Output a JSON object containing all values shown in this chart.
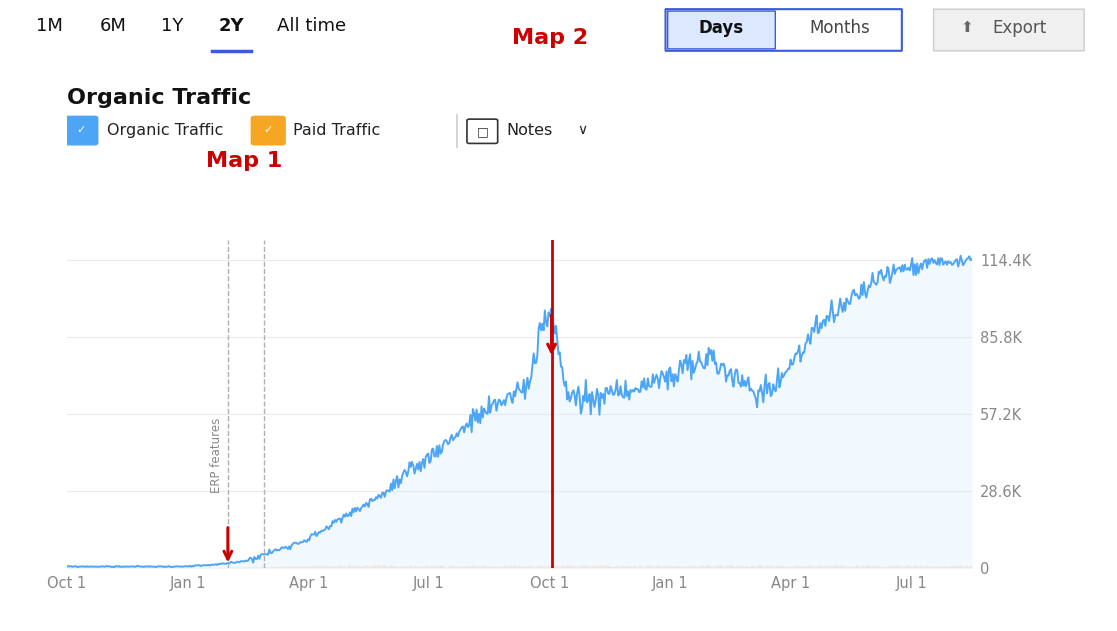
{
  "title": "Organic Traffic",
  "background_color": "#ffffff",
  "y_ticks": [
    0,
    28600,
    57200,
    85800,
    114400
  ],
  "y_tick_labels": [
    "0",
    "28.6K",
    "57.2K",
    "85.8K",
    "114.4K"
  ],
  "ylim": [
    0,
    122000
  ],
  "x_tick_labels": [
    "Oct 1",
    "Jan 1",
    "Apr 1",
    "Jul 1",
    "Oct 1",
    "Jan 1",
    "Apr 1",
    "Jul 1"
  ],
  "x_tick_positions": [
    0,
    3,
    6,
    9,
    12,
    15,
    18,
    21
  ],
  "xlim": [
    0,
    22.5
  ],
  "nav_items": [
    "1M",
    "6M",
    "1Y",
    "2Y",
    "All time"
  ],
  "nav_active": "2Y",
  "nav_active_color": "#3b5bdb",
  "map1_x": 4.0,
  "map1_x2": 4.9,
  "map2_x": 12.05,
  "line_color": "#4da6f5",
  "fill_color": "#c8e6fc",
  "paid_fill_color": "#fde8d8",
  "paid_line_color": "#f5c5a3",
  "grid_color": "#ebebeb",
  "annotation_color": "#cc0000",
  "map1_label": "Map 1",
  "map2_label": "Map 2",
  "map1_text": "ERP features",
  "legend_organic_color": "#4da6f5",
  "legend_paid_color": "#f5a623",
  "axis_label_color": "#888888",
  "nav_text_color": "#222222"
}
